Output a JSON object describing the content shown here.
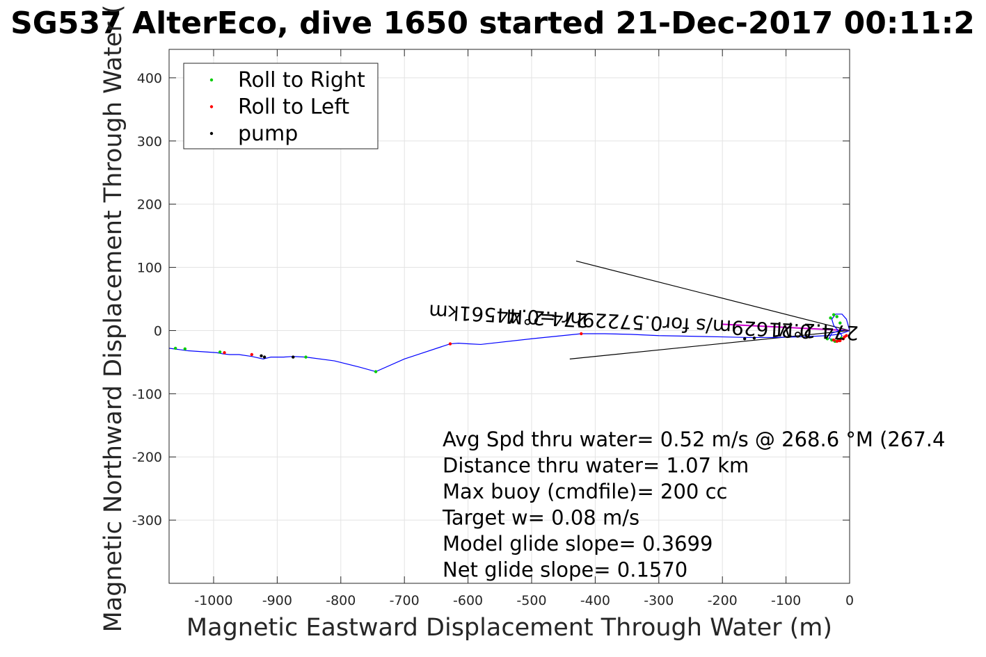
{
  "chart_data": {
    "type": "line",
    "title": "SG537 AlterEco, dive 1650 started 21-Dec-2017 00:11:2",
    "xlabel": "Magnetic Eastward Displacement Through Water (m)",
    "ylabel": "Magnetic Northward Displacement Through Water (",
    "xlim": [
      -1070,
      0
    ],
    "ylim": [
      -400,
      445
    ],
    "xticks": [
      -1000,
      -900,
      -800,
      -700,
      -600,
      -500,
      -400,
      -300,
      -200,
      -100,
      0
    ],
    "yticks": [
      -300,
      -200,
      -100,
      0,
      100,
      200,
      300,
      400
    ],
    "grid": true,
    "legend_position": "top-left",
    "colors": {
      "track": "#0000ff",
      "roll_right": "#00cc00",
      "roll_left": "#ff0000",
      "pump": "#000000",
      "cone": "#000000",
      "heading": "#cc00cc"
    },
    "legend": [
      {
        "label": "Roll to Right",
        "color": "#00cc00"
      },
      {
        "label": "Roll to Left",
        "color": "#ff0000"
      },
      {
        "label": "pump",
        "color": "#000000"
      }
    ],
    "track": {
      "x": [
        0,
        -8,
        -18,
        -35,
        -55,
        -80,
        -120,
        -160,
        -200,
        -250,
        -300,
        -345,
        -385,
        -422,
        -500,
        -580,
        -600,
        -615,
        -628,
        -700,
        -745,
        -770,
        -810,
        -855,
        -875,
        -890,
        -910,
        -922,
        -940,
        -960,
        -975,
        -985,
        -995,
        -1040,
        -1055,
        -1070
      ],
      "y": [
        0,
        -3,
        -6,
        -8,
        -9,
        -10,
        -11,
        -11,
        -10,
        -9,
        -8,
        -6,
        -5,
        -5,
        -13,
        -22,
        -21,
        -20,
        -21,
        -45,
        -65,
        -58,
        -48,
        -42,
        -41,
        -42,
        -42,
        -45,
        -41,
        -38,
        -38,
        -37,
        -35,
        -32,
        -30,
        -28
      ]
    },
    "roll_right": {
      "x": [
        -15,
        -20,
        -25,
        -30,
        -13,
        -18,
        -23,
        -28,
        -35,
        -745,
        -855,
        -990,
        -1045,
        -1060
      ],
      "y": [
        12,
        22,
        25,
        20,
        -12,
        -16,
        -17,
        -15,
        -13,
        -65,
        -42,
        -34,
        -29,
        -28
      ]
    },
    "roll_left": {
      "x": [
        -5,
        -10,
        -15,
        -20,
        -25,
        -8,
        -16,
        -628,
        -422,
        -940,
        -983
      ],
      "y": [
        -8,
        -13,
        -16,
        -17,
        -15,
        -10,
        -16,
        -21,
        -5,
        -38,
        -35
      ]
    },
    "pump": {
      "x": [
        -150,
        -165,
        -925,
        -920,
        -875
      ],
      "y": [
        -12,
        -13,
        -40,
        -42,
        -42
      ]
    },
    "heading_line": {
      "x": [
        0,
        -200
      ],
      "y": [
        0,
        10
      ]
    },
    "cone_lines": [
      {
        "x": [
          0,
          -430
        ],
        "y": [
          0,
          110
        ]
      },
      {
        "x": [
          0,
          -440
        ],
        "y": [
          0,
          -45
        ]
      }
    ],
    "rotated_labels": [
      {
        "text": "0.21629m/s for0.57229hr =0.44561km",
        "x": -360,
        "y": 25
      },
      {
        "text": "274.2°M",
        "x": -475,
        "y": 30
      },
      {
        "text": "274.2°M",
        "x": -50,
        "y": 10
      }
    ],
    "annotations": [
      "Avg Spd thru water=  0.52 m/s @ 268.6 °M (267.4",
      "Distance thru water=  1.07 km",
      "Max buoy (cmdfile)= 200 cc",
      "Target w= 0.08 m/s",
      "Model glide slope= 0.3699",
      "Net glide slope= 0.1570"
    ]
  }
}
